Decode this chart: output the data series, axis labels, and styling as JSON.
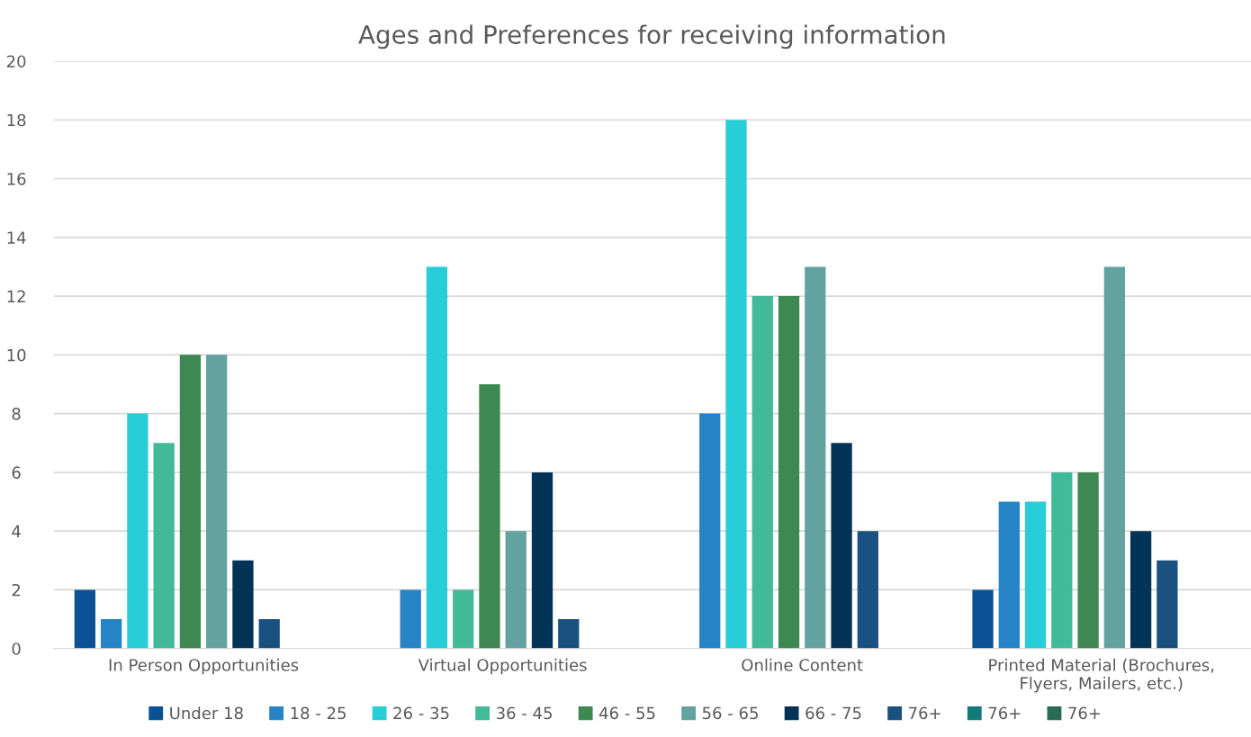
{
  "chart_data": {
    "type": "bar",
    "title": "Ages and Preferences for receiving information",
    "categories": [
      "In Person Opportunities",
      "Virtual Opportunities",
      "Online Content",
      "Printed Material (Brochures,\nFlyers, Mailers, etc.)"
    ],
    "series": [
      {
        "name": "Under 18",
        "color": "#0a5294",
        "values": [
          2,
          null,
          null,
          2
        ]
      },
      {
        "name": "18 - 25",
        "color": "#2683c6",
        "values": [
          1,
          2,
          8,
          5
        ]
      },
      {
        "name": "26 - 35",
        "color": "#27ced7",
        "values": [
          8,
          13,
          18,
          5
        ]
      },
      {
        "name": "36 - 45",
        "color": "#42ba97",
        "values": [
          7,
          2,
          12,
          6
        ]
      },
      {
        "name": "46 - 55",
        "color": "#3e8853",
        "values": [
          10,
          9,
          12,
          6
        ]
      },
      {
        "name": "56 - 65",
        "color": "#62a39f",
        "values": [
          10,
          4,
          13,
          13
        ]
      },
      {
        "name": "66 - 75",
        "color": "#033356",
        "values": [
          3,
          6,
          7,
          4
        ]
      },
      {
        "name": "76+",
        "color": "#1a5180",
        "values": [
          1,
          1,
          4,
          3
        ]
      },
      {
        "name": "76+",
        "color": "#157a7a",
        "values": [
          null,
          null,
          null,
          null
        ]
      },
      {
        "name": "76+",
        "color": "#2a6b55",
        "values": [
          null,
          null,
          null,
          null
        ]
      }
    ],
    "ylim": [
      0,
      20
    ],
    "yticks": [
      0,
      2,
      4,
      6,
      8,
      10,
      12,
      14,
      16,
      18,
      20
    ],
    "grid": "y",
    "legend": "bottom"
  }
}
